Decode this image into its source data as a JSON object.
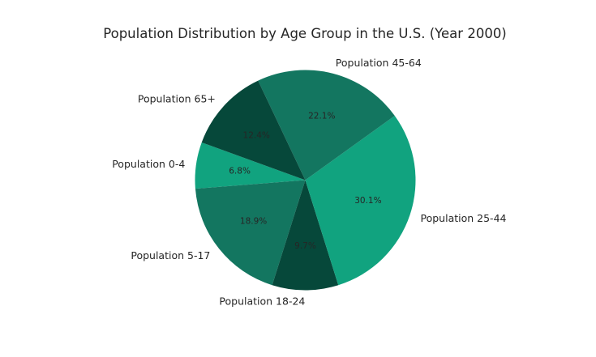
{
  "chart_data": {
    "type": "pie",
    "title": "Population Distribution by Age Group in the U.S. (Year 2000)",
    "slices": [
      {
        "label": "Population 0-4",
        "value": 6.8,
        "pct_label": "6.8%",
        "color": "#11a37f"
      },
      {
        "label": "Population 5-17",
        "value": 18.9,
        "pct_label": "18.9%",
        "color": "#137660"
      },
      {
        "label": "Population 18-24",
        "value": 9.7,
        "pct_label": "9.7%",
        "color": "#06483a"
      },
      {
        "label": "Population 25-44",
        "value": 30.1,
        "pct_label": "30.1%",
        "color": "#11a37f"
      },
      {
        "label": "Population 45-64",
        "value": 22.1,
        "pct_label": "22.1%",
        "color": "#137660"
      },
      {
        "label": "Population 65+",
        "value": 12.4,
        "pct_label": "12.4%",
        "color": "#06483a"
      }
    ],
    "start_angle_deg": 160,
    "direction": "counterclockwise",
    "legend": "none"
  }
}
